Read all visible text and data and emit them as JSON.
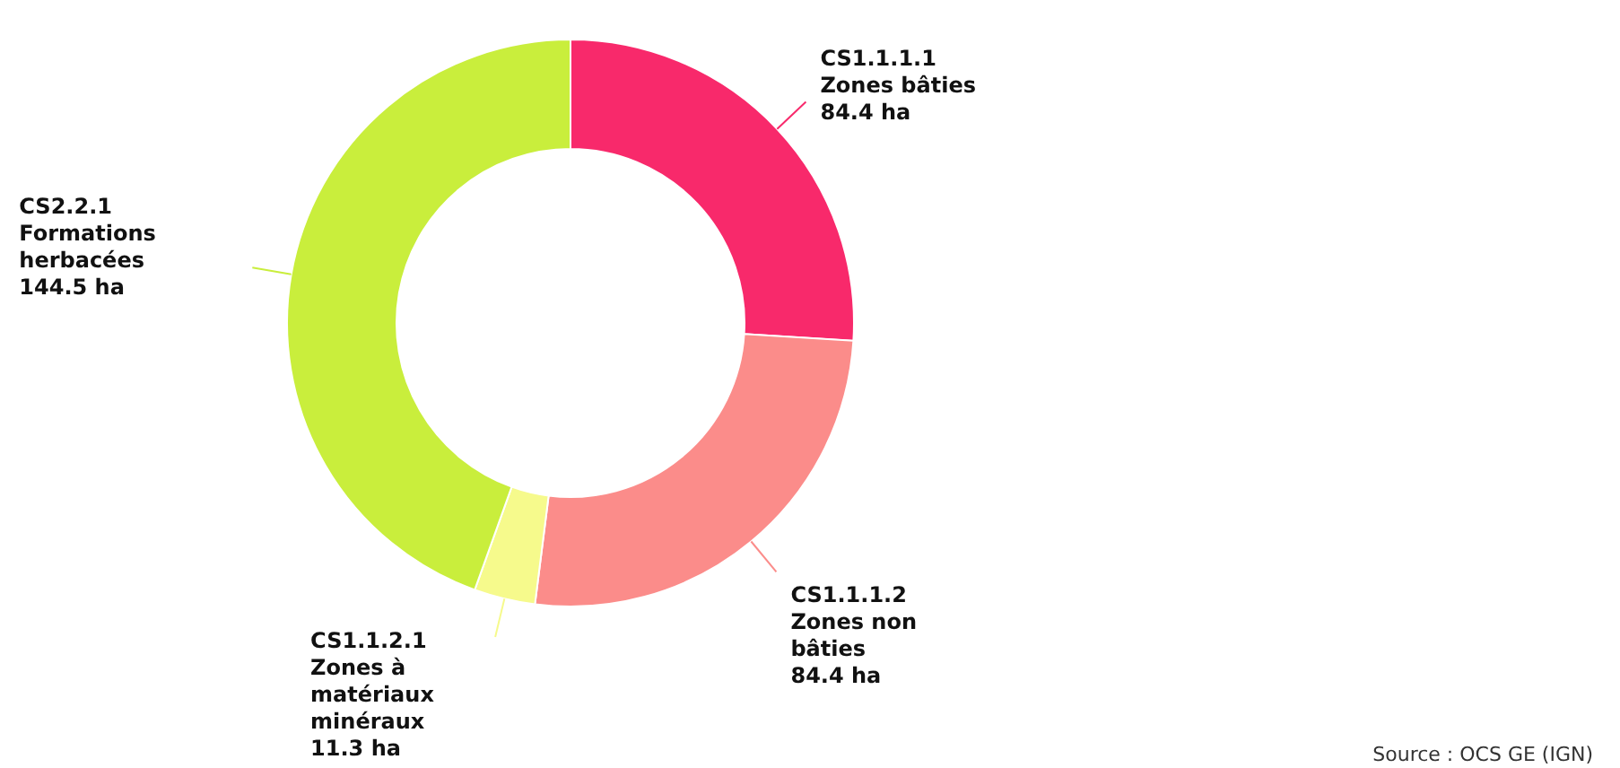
{
  "chart_data": {
    "type": "donut",
    "categories": [
      "CS1.1.1.1\nZones bâties",
      "CS1.1.1.2\nZones non\nbâties",
      "CS1.1.2.1\nZones à\nmatériaux\nminéraux",
      "CS2.2.1\nFormations\nherbacées"
    ],
    "values": [
      84.4,
      84.4,
      11.3,
      144.5
    ],
    "value_labels": [
      "84.4 ha",
      "84.4 ha",
      "11.3 ha",
      "144.5 ha"
    ],
    "colors": [
      "#f8296b",
      "#fb8c8a",
      "#f6fa8c",
      "#c9ee3c"
    ],
    "annotations": [
      "Source : OCS GE (IGN)"
    ]
  }
}
